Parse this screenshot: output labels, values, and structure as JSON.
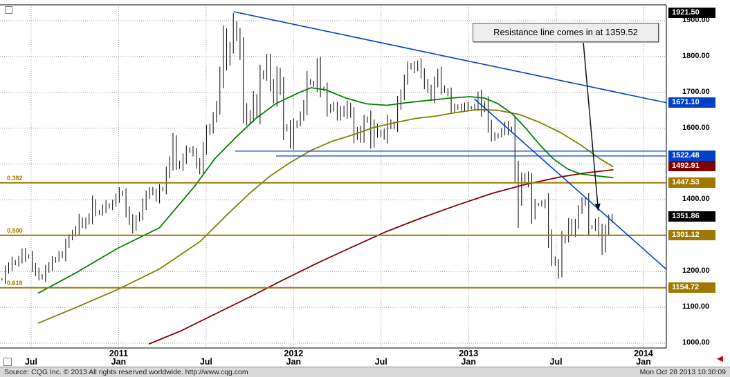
{
  "annotation": {
    "text": "Resistance line comes in at 1359.52",
    "arrow_target": {
      "m": 40.9,
      "price": 1368
    }
  },
  "footer": {
    "source": "Source: CQG Inc. © 2013 All rights reserved worldwide. http://www.cqg.com",
    "timestamp": "Mon Oct 28 2013 10:30:09"
  },
  "colors": {
    "grid": "#9a9a9a",
    "bars": "#000000",
    "trendline_blue": "#0040c8",
    "fib_gold": "#a07800",
    "ma_green": "#008000",
    "ma_olive": "#7f7f00",
    "ma_maroon": "#800000"
  },
  "chart_data": {
    "type": "ohlc-bar",
    "title": "",
    "xlabel": "",
    "ylabel": "",
    "y_axis": {
      "min": 1000,
      "max": 1900,
      "step": 100,
      "tick_labels": [
        "1900.00",
        "1800.00",
        "1700.00",
        "1600.00",
        "1400.00",
        "1200.00",
        "1100.00",
        "1000.00"
      ]
    },
    "x_axis": {
      "month_ticks": [
        {
          "label": "Jul",
          "m": 2
        },
        {
          "label": "Jan",
          "m": 8
        },
        {
          "label": "Jul",
          "m": 14
        },
        {
          "label": "Jan",
          "m": 20
        },
        {
          "label": "Jul",
          "m": 26
        },
        {
          "label": "Jan",
          "m": 32
        },
        {
          "label": "Jul",
          "m": 38
        },
        {
          "label": "Jan",
          "m": 44
        }
      ],
      "year_ticks": [
        {
          "label": "2011",
          "m": 8
        },
        {
          "label": "2012",
          "m": 20
        },
        {
          "label": "2013",
          "m": 32
        },
        {
          "label": "2014",
          "m": 44
        }
      ]
    },
    "weekly_closes": [
      1178,
      1205,
      1215,
      1228,
      1222,
      1235,
      1252,
      1240,
      1244,
      1212,
      1198,
      1188,
      1182,
      1207,
      1216,
      1229,
      1236,
      1248,
      1246,
      1274,
      1296,
      1308,
      1317,
      1344,
      1328,
      1342,
      1352,
      1392,
      1364,
      1366,
      1376,
      1386,
      1380,
      1392,
      1406,
      1421,
      1415,
      1368,
      1344,
      1322,
      1348,
      1358,
      1388,
      1410,
      1428,
      1420,
      1406,
      1428,
      1432,
      1476,
      1506,
      1562,
      1502,
      1494,
      1516,
      1536,
      1542,
      1530,
      1502,
      1486,
      1544,
      1592,
      1602,
      1628,
      1664,
      1746,
      1852,
      1788,
      1828,
      1884,
      1858,
      1812,
      1656,
      1622,
      1638,
      1682,
      1642,
      1746,
      1752,
      1788,
      1722,
      1684,
      1748,
      1712,
      1598,
      1604,
      1562,
      1606,
      1616,
      1636,
      1664,
      1732,
      1726,
      1722,
      1774,
      1712,
      1708,
      1652,
      1658,
      1662,
      1632,
      1652,
      1642,
      1662,
      1638,
      1578,
      1592,
      1574,
      1622,
      1626,
      1566,
      1604,
      1582,
      1588,
      1578,
      1618,
      1604,
      1612,
      1668,
      1692,
      1736,
      1772,
      1774,
      1766,
      1782,
      1752,
      1724,
      1712,
      1686,
      1728,
      1752,
      1714,
      1704,
      1696,
      1658,
      1656,
      1662,
      1656,
      1662,
      1658,
      1656,
      1662,
      1688,
      1652,
      1668,
      1608,
      1578,
      1576,
      1582,
      1592,
      1606,
      1594,
      1600,
      1482,
      1406,
      1454,
      1468,
      1446,
      1362,
      1386,
      1388,
      1392,
      1386,
      1298,
      1234,
      1224,
      1212,
      1284,
      1296,
      1334,
      1312,
      1332,
      1372,
      1396,
      1392,
      1326,
      1322,
      1338,
      1312,
      1268,
      1316,
      1346,
      1351.86
    ],
    "bar_overrides": {
      "69": {
        "high": 1921.5
      },
      "154": {
        "low": 1321
      },
      "166": {
        "low": 1180
      }
    },
    "moving_averages": [
      {
        "name": "ma-maroon-long",
        "color": "#800000",
        "points": [
          [
            10.1,
            998
          ],
          [
            12.2,
            1033
          ],
          [
            14.6,
            1081
          ],
          [
            17.0,
            1129
          ],
          [
            19.3,
            1177
          ],
          [
            21.7,
            1225
          ],
          [
            24.1,
            1270
          ],
          [
            26.4,
            1312
          ],
          [
            28.8,
            1350
          ],
          [
            31.2,
            1385
          ],
          [
            33.6,
            1418
          ],
          [
            35.9,
            1443
          ],
          [
            38.3,
            1464
          ],
          [
            40.0,
            1475
          ],
          [
            41.9,
            1484
          ]
        ]
      },
      {
        "name": "ma-olive-medium",
        "color": "#7f7f00",
        "points": [
          [
            2.5,
            1056
          ],
          [
            5.1,
            1100
          ],
          [
            7.9,
            1149
          ],
          [
            10.8,
            1207
          ],
          [
            13.6,
            1284
          ],
          [
            15.5,
            1361
          ],
          [
            17.0,
            1419
          ],
          [
            18.4,
            1467
          ],
          [
            19.8,
            1505
          ],
          [
            21.2,
            1538
          ],
          [
            22.6,
            1563
          ],
          [
            24.1,
            1582
          ],
          [
            25.5,
            1602
          ],
          [
            26.9,
            1615
          ],
          [
            28.3,
            1627
          ],
          [
            29.8,
            1634
          ],
          [
            31.2,
            1644
          ],
          [
            32.6,
            1652
          ],
          [
            34.0,
            1650
          ],
          [
            35.5,
            1638
          ],
          [
            36.9,
            1616
          ],
          [
            38.3,
            1588
          ],
          [
            39.7,
            1553
          ],
          [
            41.0,
            1515
          ],
          [
            41.9,
            1493
          ]
        ]
      },
      {
        "name": "ma-green-short",
        "color": "#008000",
        "points": [
          [
            2.5,
            1140
          ],
          [
            5.1,
            1197
          ],
          [
            7.9,
            1264
          ],
          [
            10.8,
            1322
          ],
          [
            13.2,
            1437
          ],
          [
            14.6,
            1515
          ],
          [
            16.0,
            1573
          ],
          [
            17.4,
            1627
          ],
          [
            18.8,
            1669
          ],
          [
            20.3,
            1698
          ],
          [
            21.2,
            1713
          ],
          [
            22.2,
            1707
          ],
          [
            23.6,
            1684
          ],
          [
            25.0,
            1668
          ],
          [
            26.4,
            1664
          ],
          [
            27.9,
            1672
          ],
          [
            29.3,
            1678
          ],
          [
            30.7,
            1684
          ],
          [
            32.1,
            1688
          ],
          [
            33.1,
            1684
          ],
          [
            34.0,
            1669
          ],
          [
            35.0,
            1640
          ],
          [
            35.9,
            1601
          ],
          [
            36.9,
            1553
          ],
          [
            37.8,
            1515
          ],
          [
            38.8,
            1486
          ],
          [
            39.7,
            1472
          ],
          [
            41.9,
            1462
          ]
        ]
      }
    ],
    "trendlines": [
      {
        "name": "major-downtrend-resistance",
        "color": "#0040c8",
        "from": [
          15.9,
          1925
        ],
        "to": [
          45.57,
          1671.1
        ]
      },
      {
        "name": "steep-resistance-line",
        "color": "#0040c8",
        "from": [
          32.4,
          1682
        ],
        "to": [
          45.57,
          1206
        ]
      }
    ],
    "horizontal_lines": [
      {
        "name": "support-upper",
        "color": "#0040c8",
        "price": 1536,
        "from_m": 16.0,
        "width": 1.2
      },
      {
        "name": "support-1522",
        "color": "#0040c8",
        "price": 1522.48,
        "from_m": 18.8,
        "width": 1.2
      },
      {
        "name": "fib-382",
        "color": "#a07800",
        "price": 1447.53,
        "from_m": null,
        "width": 2,
        "label": "0.382"
      },
      {
        "name": "fib-500",
        "color": "#a07800",
        "price": 1301.12,
        "from_m": null,
        "width": 2,
        "label": "0.500"
      },
      {
        "name": "fib-618",
        "color": "#a07800",
        "price": 1154.72,
        "from_m": null,
        "width": 2,
        "label": "0.618"
      }
    ],
    "price_labels": [
      {
        "text": "1921.50",
        "price": 1921.5,
        "bg": "#000000"
      },
      {
        "text": "1671.10",
        "price": 1671.1,
        "bg": "#0040c8"
      },
      {
        "text": "1522.48",
        "price": 1522.48,
        "bg": "#0040c8"
      },
      {
        "text": "1492.91",
        "price": 1492.91,
        "bg": "#800000"
      },
      {
        "text": "1447.53",
        "price": 1447.53,
        "bg": "#a07800"
      },
      {
        "text": "1351.86",
        "price": 1351.86,
        "bg": "#000000"
      },
      {
        "text": "1301.12",
        "price": 1301.12,
        "bg": "#a07800"
      },
      {
        "text": "1154.72",
        "price": 1154.72,
        "bg": "#a07800"
      }
    ]
  }
}
